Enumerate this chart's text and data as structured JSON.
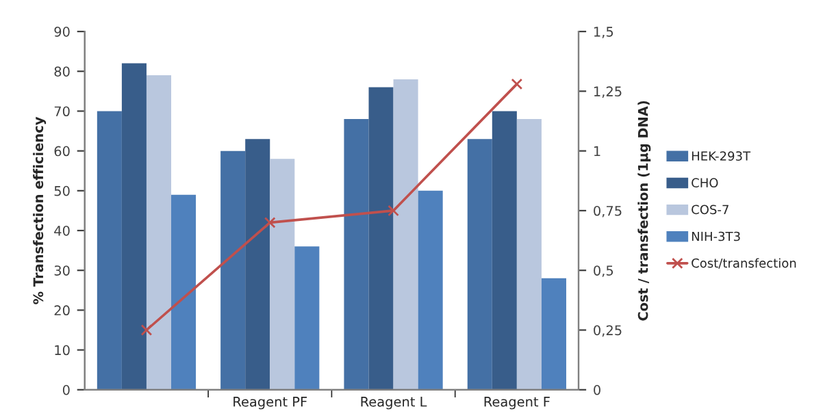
{
  "chart_data": {
    "type": "bar",
    "categories": [
      null,
      "Reagent PF",
      "Reagent L",
      "Reagent F"
    ],
    "ylabel": "% Transfection efficiency",
    "y2label": "Cost / transfection (1µg DNA)",
    "ylim": [
      0,
      90
    ],
    "yticks": [
      0,
      10,
      20,
      30,
      40,
      50,
      60,
      70,
      80,
      90
    ],
    "y2lim": [
      0,
      1.5
    ],
    "y2ticks": [
      0,
      {
        "value": 0.25,
        "label": "0,25"
      },
      {
        "value": 0.5,
        "label": "0,5"
      },
      {
        "value": 0.75,
        "label": "0,75"
      },
      1,
      {
        "value": 1.25,
        "label": "1,25"
      },
      {
        "value": 1.5,
        "label": "1,5"
      }
    ],
    "series": [
      {
        "name": "HEK-293T",
        "color": "#4470a5",
        "values": [
          70,
          60,
          68,
          63
        ]
      },
      {
        "name": "CHO",
        "color": "#385d8a",
        "values": [
          82,
          63,
          76,
          70
        ]
      },
      {
        "name": "COS-7",
        "color": "#b9c7de",
        "values": [
          79,
          58,
          78,
          68
        ]
      },
      {
        "name": "NIH-3T3",
        "color": "#4f81bd",
        "values": [
          49,
          36,
          50,
          28
        ]
      },
      {
        "name": "Cost/transfection",
        "type": "line",
        "axis": "y2",
        "color": "#c0504d",
        "marker": "cross",
        "line_style": "solid",
        "values": [
          0.25,
          0.7,
          0.75,
          1.28
        ]
      }
    ],
    "grid": false,
    "legend": "right"
  }
}
